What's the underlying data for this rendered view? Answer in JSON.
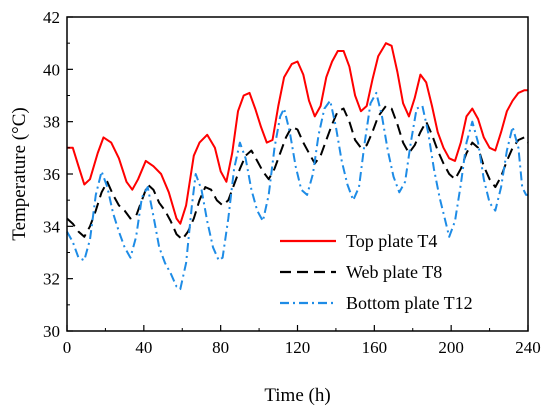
{
  "chart_data": {
    "type": "line",
    "xlabel": "Time (h)",
    "ylabel": "Temperature (°C)",
    "xlim": [
      0,
      240
    ],
    "ylim": [
      30,
      42
    ],
    "xticks": [
      0,
      40,
      80,
      120,
      160,
      200,
      240
    ],
    "yticks": [
      30,
      32,
      34,
      36,
      38,
      40,
      42
    ],
    "grid": false,
    "legend_position": "bottom-right",
    "series": [
      {
        "name": "Top plate T4",
        "color": "#ff0000",
        "style": "solid",
        "points": [
          [
            0,
            37.0
          ],
          [
            3,
            37.0
          ],
          [
            6,
            36.3
          ],
          [
            9,
            35.6
          ],
          [
            12,
            35.8
          ],
          [
            16,
            36.8
          ],
          [
            19,
            37.4
          ],
          [
            23,
            37.2
          ],
          [
            27,
            36.6
          ],
          [
            31,
            35.7
          ],
          [
            34,
            35.4
          ],
          [
            37,
            35.8
          ],
          [
            41,
            36.5
          ],
          [
            45,
            36.3
          ],
          [
            49,
            36.0
          ],
          [
            53,
            35.3
          ],
          [
            57,
            34.3
          ],
          [
            59,
            34.1
          ],
          [
            62,
            34.8
          ],
          [
            66,
            36.7
          ],
          [
            69,
            37.2
          ],
          [
            73,
            37.5
          ],
          [
            77,
            37.0
          ],
          [
            80,
            36.1
          ],
          [
            83,
            35.7
          ],
          [
            86,
            36.8
          ],
          [
            89,
            38.4
          ],
          [
            92,
            39.0
          ],
          [
            95,
            39.1
          ],
          [
            98,
            38.5
          ],
          [
            101,
            37.8
          ],
          [
            104,
            37.2
          ],
          [
            107,
            37.3
          ],
          [
            110,
            38.6
          ],
          [
            113,
            39.7
          ],
          [
            117,
            40.2
          ],
          [
            120,
            40.3
          ],
          [
            123,
            39.8
          ],
          [
            126,
            38.8
          ],
          [
            129,
            38.2
          ],
          [
            132,
            38.6
          ],
          [
            135,
            39.7
          ],
          [
            138,
            40.3
          ],
          [
            141,
            40.7
          ],
          [
            144,
            40.7
          ],
          [
            147,
            40.1
          ],
          [
            150,
            39.0
          ],
          [
            153,
            38.4
          ],
          [
            156,
            38.6
          ],
          [
            159,
            39.6
          ],
          [
            162,
            40.5
          ],
          [
            166,
            41.0
          ],
          [
            169,
            40.9
          ],
          [
            172,
            39.9
          ],
          [
            175,
            38.7
          ],
          [
            178,
            38.2
          ],
          [
            181,
            38.9
          ],
          [
            184,
            39.8
          ],
          [
            187,
            39.5
          ],
          [
            190,
            38.6
          ],
          [
            193,
            37.6
          ],
          [
            196,
            37.0
          ],
          [
            199,
            36.6
          ],
          [
            202,
            36.5
          ],
          [
            205,
            37.2
          ],
          [
            208,
            38.2
          ],
          [
            211,
            38.5
          ],
          [
            214,
            38.1
          ],
          [
            217,
            37.4
          ],
          [
            220,
            37.0
          ],
          [
            223,
            36.9
          ],
          [
            226,
            37.6
          ],
          [
            229,
            38.4
          ],
          [
            232,
            38.8
          ],
          [
            235,
            39.1
          ],
          [
            238,
            39.2
          ],
          [
            240,
            39.2
          ]
        ]
      },
      {
        "name": "Web plate T8",
        "color": "#000000",
        "style": "dashed",
        "points": [
          [
            0,
            34.3
          ],
          [
            3,
            34.1
          ],
          [
            6,
            33.8
          ],
          [
            9,
            33.6
          ],
          [
            12,
            34.0
          ],
          [
            15,
            34.6
          ],
          [
            18,
            35.3
          ],
          [
            21,
            35.7
          ],
          [
            24,
            35.2
          ],
          [
            27,
            34.8
          ],
          [
            30,
            34.6
          ],
          [
            33,
            34.3
          ],
          [
            36,
            34.4
          ],
          [
            39,
            35.0
          ],
          [
            42,
            35.6
          ],
          [
            45,
            35.4
          ],
          [
            48,
            34.9
          ],
          [
            51,
            34.6
          ],
          [
            54,
            34.2
          ],
          [
            57,
            33.7
          ],
          [
            60,
            33.5
          ],
          [
            63,
            33.8
          ],
          [
            66,
            34.3
          ],
          [
            69,
            35.0
          ],
          [
            72,
            35.5
          ],
          [
            75,
            35.4
          ],
          [
            78,
            35.0
          ],
          [
            81,
            34.8
          ],
          [
            84,
            35.0
          ],
          [
            87,
            35.6
          ],
          [
            90,
            36.2
          ],
          [
            93,
            36.7
          ],
          [
            96,
            36.9
          ],
          [
            99,
            36.5
          ],
          [
            102,
            36.1
          ],
          [
            105,
            35.8
          ],
          [
            108,
            36.2
          ],
          [
            111,
            36.8
          ],
          [
            114,
            37.4
          ],
          [
            117,
            37.8
          ],
          [
            120,
            37.7
          ],
          [
            123,
            37.2
          ],
          [
            126,
            36.8
          ],
          [
            129,
            36.4
          ],
          [
            132,
            36.7
          ],
          [
            135,
            37.3
          ],
          [
            138,
            37.9
          ],
          [
            141,
            38.4
          ],
          [
            144,
            38.5
          ],
          [
            147,
            38.0
          ],
          [
            150,
            37.3
          ],
          [
            153,
            37.0
          ],
          [
            156,
            37.1
          ],
          [
            159,
            37.6
          ],
          [
            162,
            38.2
          ],
          [
            166,
            38.6
          ],
          [
            169,
            38.5
          ],
          [
            172,
            37.9
          ],
          [
            175,
            37.2
          ],
          [
            178,
            36.8
          ],
          [
            181,
            37.1
          ],
          [
            184,
            37.6
          ],
          [
            187,
            38.0
          ],
          [
            190,
            37.5
          ],
          [
            193,
            36.9
          ],
          [
            196,
            36.4
          ],
          [
            199,
            36.0
          ],
          [
            202,
            35.8
          ],
          [
            205,
            36.2
          ],
          [
            208,
            36.8
          ],
          [
            211,
            37.2
          ],
          [
            214,
            37.0
          ],
          [
            217,
            36.3
          ],
          [
            220,
            35.8
          ],
          [
            223,
            35.5
          ],
          [
            226,
            35.9
          ],
          [
            229,
            36.5
          ],
          [
            232,
            37.0
          ],
          [
            235,
            37.3
          ],
          [
            238,
            37.4
          ],
          [
            240,
            37.2
          ]
        ]
      },
      {
        "name": "Bottom plate T12",
        "color": "#1e8ce6",
        "style": "dash-dot",
        "points": [
          [
            0,
            33.8
          ],
          [
            3,
            33.4
          ],
          [
            6,
            32.8
          ],
          [
            9,
            32.7
          ],
          [
            12,
            33.5
          ],
          [
            15,
            35.2
          ],
          [
            18,
            36.1
          ],
          [
            21,
            35.5
          ],
          [
            24,
            34.5
          ],
          [
            27,
            33.8
          ],
          [
            30,
            33.2
          ],
          [
            33,
            32.8
          ],
          [
            36,
            33.6
          ],
          [
            39,
            35.1
          ],
          [
            42,
            35.5
          ],
          [
            45,
            34.4
          ],
          [
            48,
            33.2
          ],
          [
            51,
            32.6
          ],
          [
            54,
            32.2
          ],
          [
            57,
            31.7
          ],
          [
            59,
            31.6
          ],
          [
            62,
            32.6
          ],
          [
            65,
            34.8
          ],
          [
            67,
            36.0
          ],
          [
            70,
            35.4
          ],
          [
            73,
            34.2
          ],
          [
            76,
            33.2
          ],
          [
            79,
            32.7
          ],
          [
            81,
            32.8
          ],
          [
            84,
            34.3
          ],
          [
            87,
            36.2
          ],
          [
            90,
            37.2
          ],
          [
            93,
            36.6
          ],
          [
            96,
            35.4
          ],
          [
            99,
            34.6
          ],
          [
            102,
            34.2
          ],
          [
            105,
            35.2
          ],
          [
            108,
            37.0
          ],
          [
            111,
            38.2
          ],
          [
            113,
            38.5
          ],
          [
            116,
            37.6
          ],
          [
            119,
            36.3
          ],
          [
            122,
            35.4
          ],
          [
            125,
            35.2
          ],
          [
            128,
            36.0
          ],
          [
            131,
            37.5
          ],
          [
            134,
            38.5
          ],
          [
            137,
            38.8
          ],
          [
            140,
            37.8
          ],
          [
            143,
            36.5
          ],
          [
            146,
            35.6
          ],
          [
            149,
            35.0
          ],
          [
            152,
            35.5
          ],
          [
            155,
            37.2
          ],
          [
            158,
            38.7
          ],
          [
            161,
            39.1
          ],
          [
            164,
            38.2
          ],
          [
            167,
            36.9
          ],
          [
            170,
            35.9
          ],
          [
            173,
            35.3
          ],
          [
            176,
            35.7
          ],
          [
            179,
            37.2
          ],
          [
            182,
            38.5
          ],
          [
            185,
            38.6
          ],
          [
            188,
            37.6
          ],
          [
            191,
            36.2
          ],
          [
            194,
            35.1
          ],
          [
            197,
            34.2
          ],
          [
            199,
            33.6
          ],
          [
            202,
            34.2
          ],
          [
            205,
            35.6
          ],
          [
            208,
            37.2
          ],
          [
            211,
            38.0
          ],
          [
            214,
            37.2
          ],
          [
            217,
            35.8
          ],
          [
            220,
            34.9
          ],
          [
            223,
            34.6
          ],
          [
            226,
            35.5
          ],
          [
            229,
            36.9
          ],
          [
            232,
            37.8
          ],
          [
            235,
            37.0
          ],
          [
            237,
            35.5
          ],
          [
            239,
            35.2
          ],
          [
            240,
            35.2
          ]
        ]
      }
    ]
  }
}
